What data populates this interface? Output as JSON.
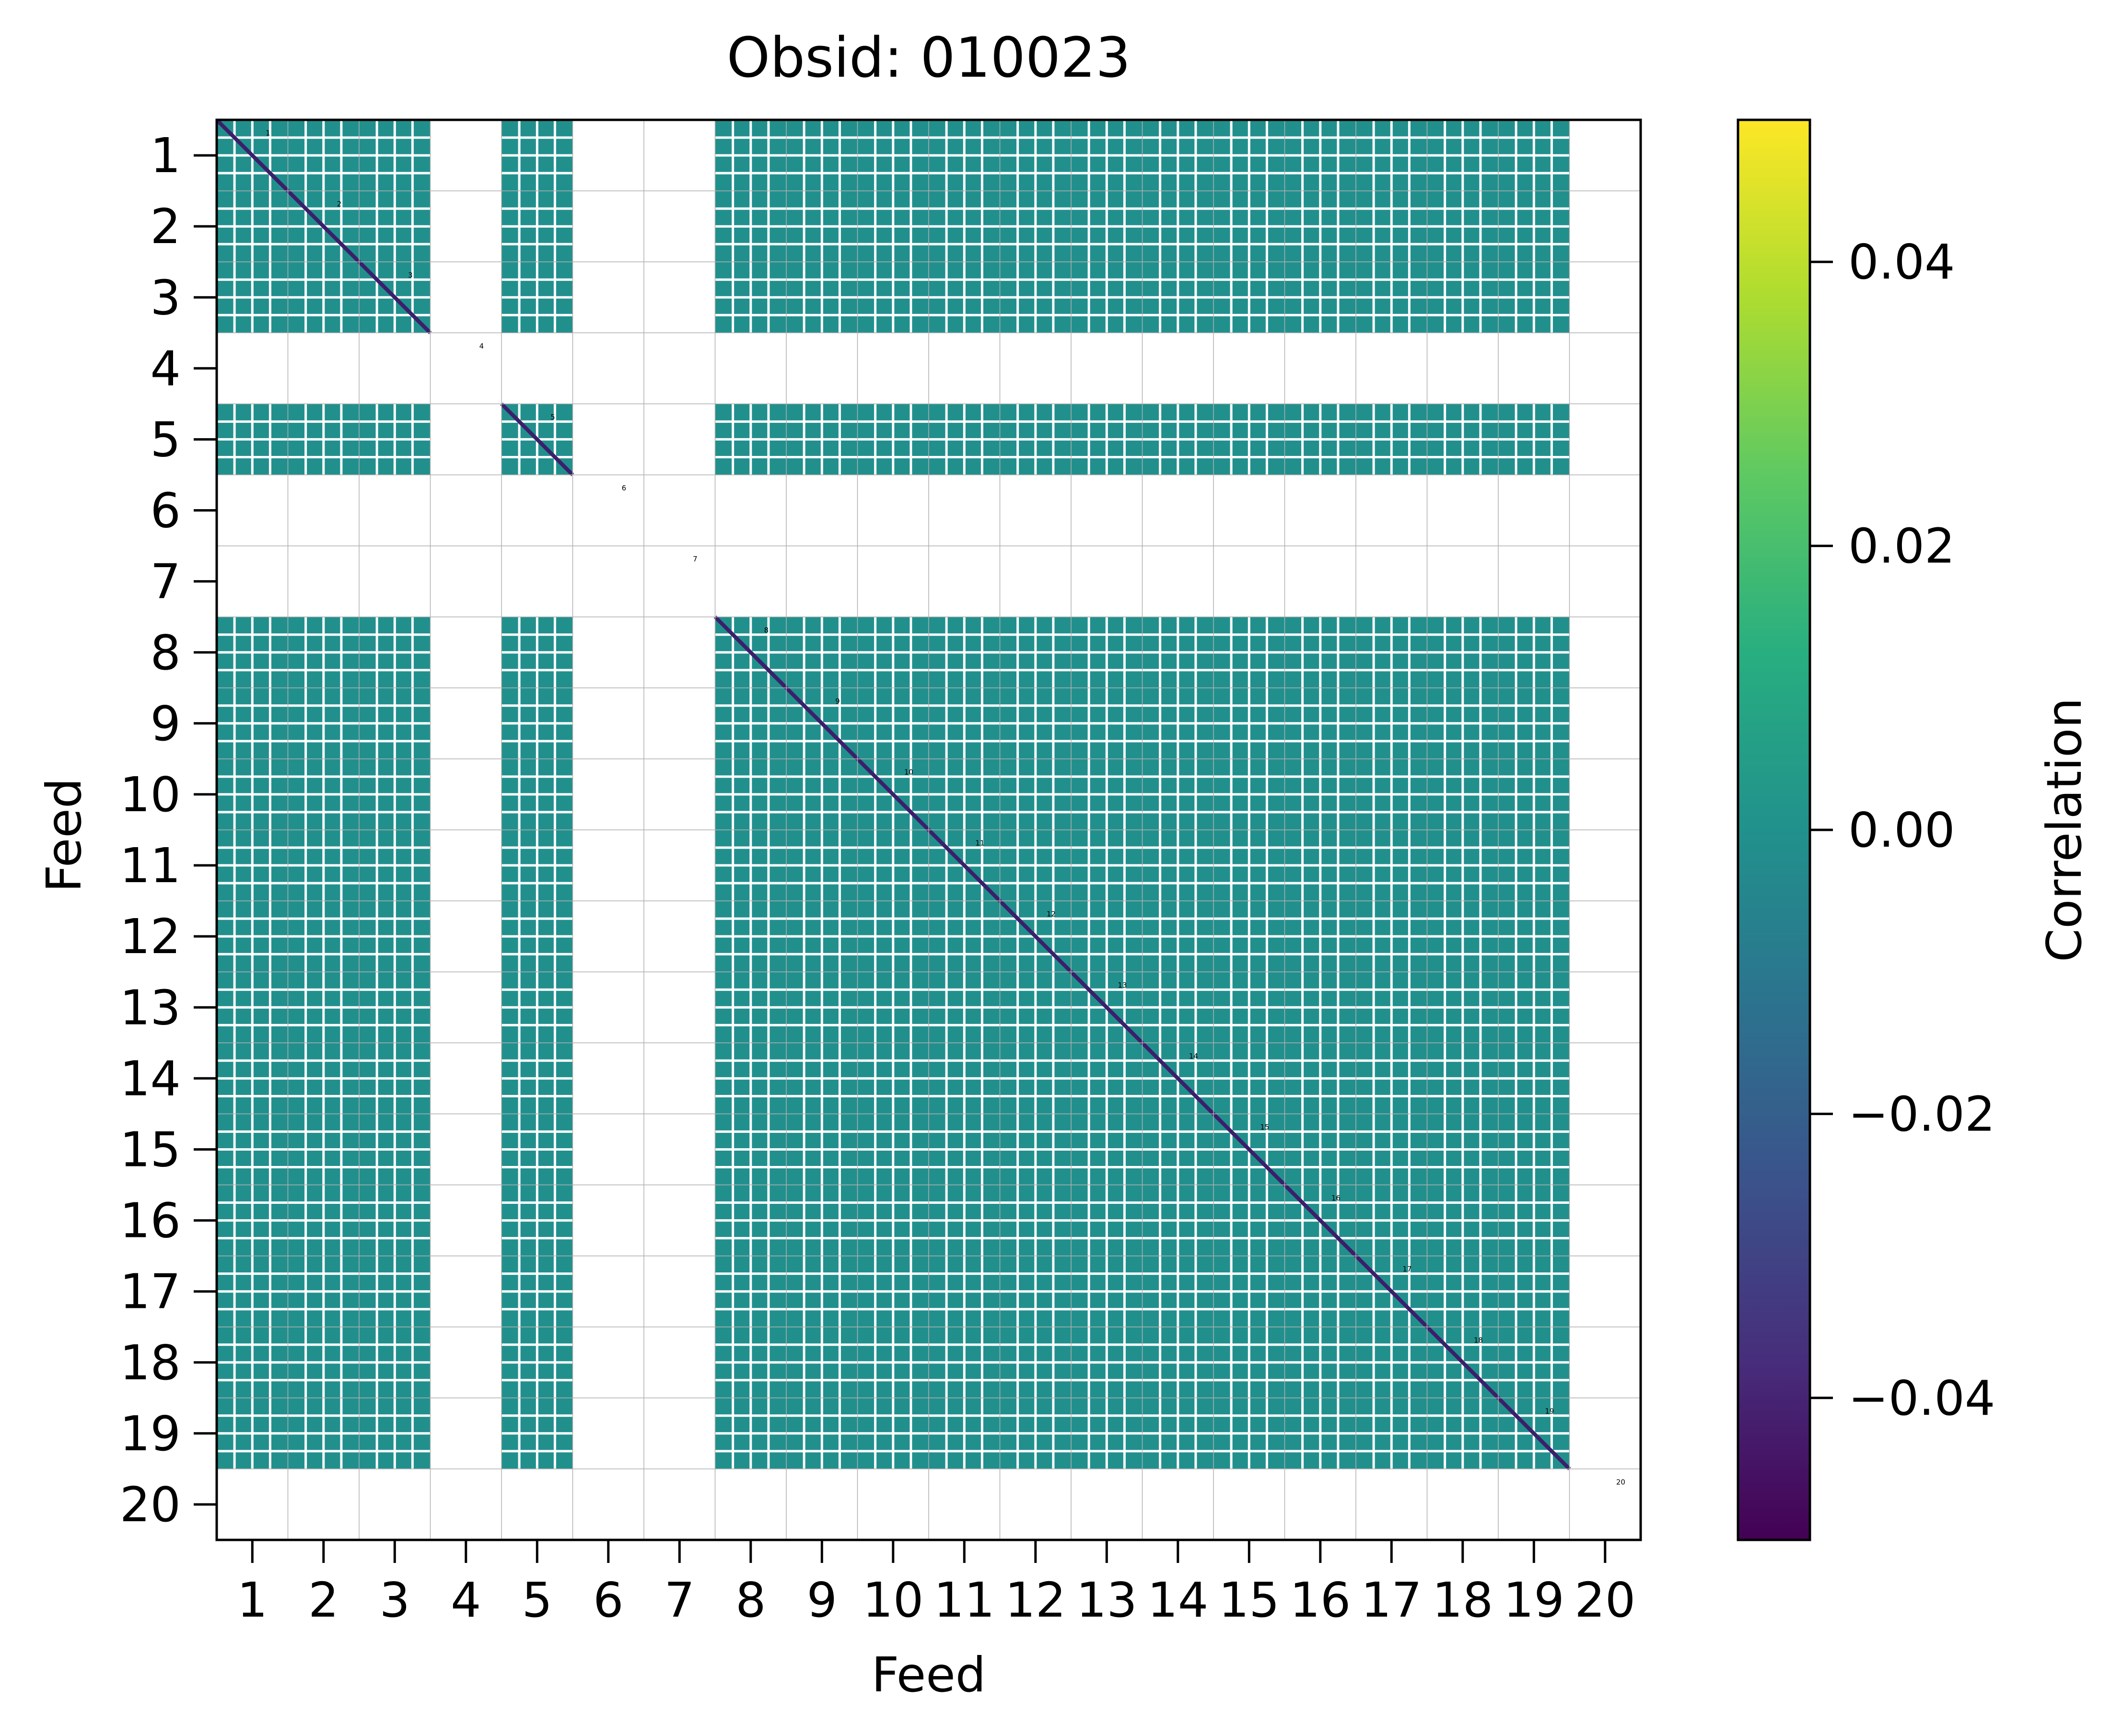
{
  "chart_data": {
    "type": "heatmap",
    "title": "Obsid: 010023",
    "xlabel": "Feed",
    "ylabel": "Feed",
    "x_tick_labels": [
      "1",
      "2",
      "3",
      "4",
      "5",
      "6",
      "7",
      "8",
      "9",
      "10",
      "11",
      "12",
      "13",
      "14",
      "15",
      "16",
      "17",
      "18",
      "19",
      "20"
    ],
    "y_tick_labels": [
      "1",
      "2",
      "3",
      "4",
      "5",
      "6",
      "7",
      "8",
      "9",
      "10",
      "11",
      "12",
      "13",
      "14",
      "15",
      "16",
      "17",
      "18",
      "19",
      "20"
    ],
    "feeds": [
      1,
      2,
      3,
      4,
      5,
      6,
      7,
      8,
      9,
      10,
      11,
      12,
      13,
      14,
      15,
      16,
      17,
      18,
      19,
      20
    ],
    "active_feeds": [
      1,
      2,
      3,
      5,
      8,
      9,
      10,
      11,
      12,
      13,
      14,
      15,
      16,
      17,
      18,
      19
    ],
    "empty_feeds": [
      4,
      6,
      7,
      20
    ],
    "offdiagonal_value": 0.0,
    "diagonal_value": -0.05,
    "grid": true,
    "diagonal_labels": [
      "1",
      "2",
      "3",
      "4",
      "5",
      "6",
      "7",
      "8",
      "9",
      "10",
      "11",
      "12",
      "13",
      "14",
      "15",
      "16",
      "17",
      "18",
      "19",
      "20"
    ],
    "colorbar": {
      "label": "Correlation",
      "colormap": "viridis",
      "vmin": -0.05,
      "vmax": 0.05,
      "ticks": [
        0.04,
        0.02,
        0.0,
        -0.02,
        -0.04
      ],
      "tick_labels": [
        "0.04",
        "0.02",
        "0.00",
        "−0.02",
        "−0.04"
      ]
    },
    "colors": {
      "offdiagonal": "#21908d",
      "diagonal": "#3b1f6b",
      "gap": "#ffffff",
      "grid": "#b0b0b0"
    }
  }
}
